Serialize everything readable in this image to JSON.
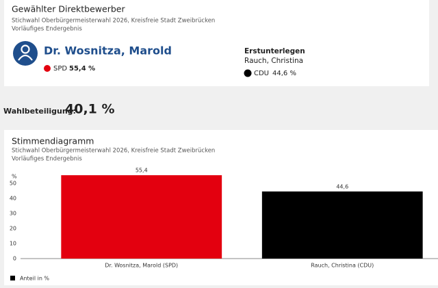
{
  "result_card": {
    "title": "Gewählter Direktbewerber",
    "subtitle": "Stichwahl Oberbürgermeisterwahl 2026, Kreisfreie Stadt Zweibrücken",
    "status": "Vorläufiges Endergebnis",
    "winner": {
      "name": "Dr. Wosnitza, Marold",
      "party": "SPD",
      "share": "55,4 %",
      "color": "#e3000f"
    },
    "runner_up": {
      "label": "Erstunterlegen",
      "name": "Rauch, Christina",
      "party": "CDU",
      "share": "44,6 %",
      "color": "#000000"
    }
  },
  "turnout": {
    "label": "Wahlbeteiligung:",
    "value": "40,1 %"
  },
  "chart_data": {
    "type": "bar",
    "title": "Stimmendiagramm",
    "subtitle": "Stichwahl Oberbürgermeisterwahl 2026, Kreisfreie Stadt Zweibrücken",
    "note": "Vorläufiges Endergebnis",
    "y_label": "%",
    "categories": [
      "Dr. Wosnitza, Marold (SPD)",
      "Rauch, Christina (CDU)"
    ],
    "series": [
      {
        "name": "Anteil in %",
        "color": "#000000",
        "values": [
          55.4,
          44.6
        ],
        "value_labels": [
          "55,4",
          "44,6"
        ],
        "colors": [
          "#e3000f",
          "#000000"
        ]
      }
    ],
    "ylim": [
      0,
      60
    ],
    "yticks": [
      0,
      10,
      20,
      30,
      40,
      50
    ]
  }
}
